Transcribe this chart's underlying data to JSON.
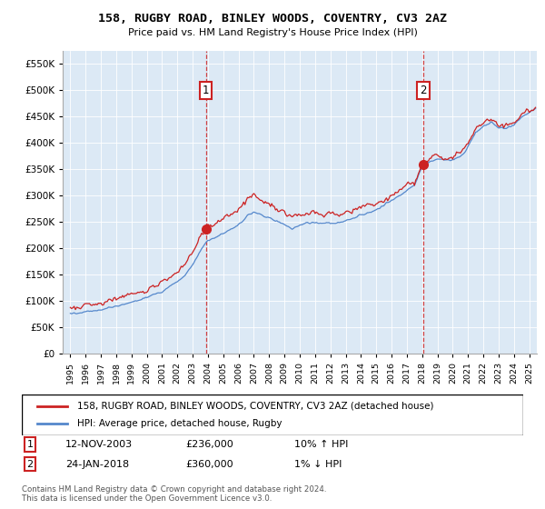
{
  "title": "158, RUGBY ROAD, BINLEY WOODS, COVENTRY, CV3 2AZ",
  "subtitle": "Price paid vs. HM Land Registry's House Price Index (HPI)",
  "hpi_label": "HPI: Average price, detached house, Rugby",
  "property_label": "158, RUGBY ROAD, BINLEY WOODS, COVENTRY, CV3 2AZ (detached house)",
  "sale1_date": "12-NOV-2003",
  "sale1_price": 236000,
  "sale1_hpi": "10% ↑ HPI",
  "sale1_label": "1",
  "sale1_x": 2003.87,
  "sale2_date": "24-JAN-2018",
  "sale2_price": 360000,
  "sale2_hpi": "1% ↓ HPI",
  "sale2_label": "2",
  "sale2_x": 2018.07,
  "ylim": [
    0,
    575000
  ],
  "xlim_start": 1994.5,
  "xlim_end": 2025.5,
  "plot_bg": "#dce9f5",
  "hpi_color": "#5588cc",
  "price_color": "#cc2222",
  "vline_color": "#cc2222",
  "footer": "Contains HM Land Registry data © Crown copyright and database right 2024.\nThis data is licensed under the Open Government Licence v3.0."
}
